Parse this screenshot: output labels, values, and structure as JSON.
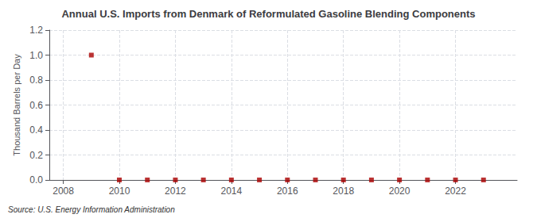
{
  "chart_data": {
    "type": "scatter",
    "title": "Annual U.S. Imports from Denmark of Reformulated Gasoline Blending Components",
    "ylabel": "Thousand Barrels per Day",
    "annotation": "Source: U.S. Energy Information Administration",
    "x": [
      2009,
      2010,
      2011,
      2012,
      2013,
      2014,
      2015,
      2016,
      2017,
      2018,
      2019,
      2020,
      2021,
      2022,
      2023
    ],
    "values": [
      1.0,
      0.0,
      0.0,
      0.0,
      0.0,
      0.0,
      0.0,
      0.0,
      0.0,
      0.0,
      0.0,
      0.0,
      0.0,
      0.0,
      0.0
    ],
    "color": "#aa0000",
    "marker": "square",
    "xlim": [
      2007.5,
      2024.2
    ],
    "xticks": [
      2008,
      2010,
      2012,
      2014,
      2016,
      2018,
      2020,
      2022
    ],
    "ylim": [
      0.0,
      1.2
    ],
    "yticks": [
      {
        "value": 0.0,
        "label": "0.0"
      },
      0.2,
      0.4,
      0.6,
      0.8,
      {
        "value": 1.0,
        "label": "1.0"
      },
      1.2
    ],
    "grid": true
  }
}
